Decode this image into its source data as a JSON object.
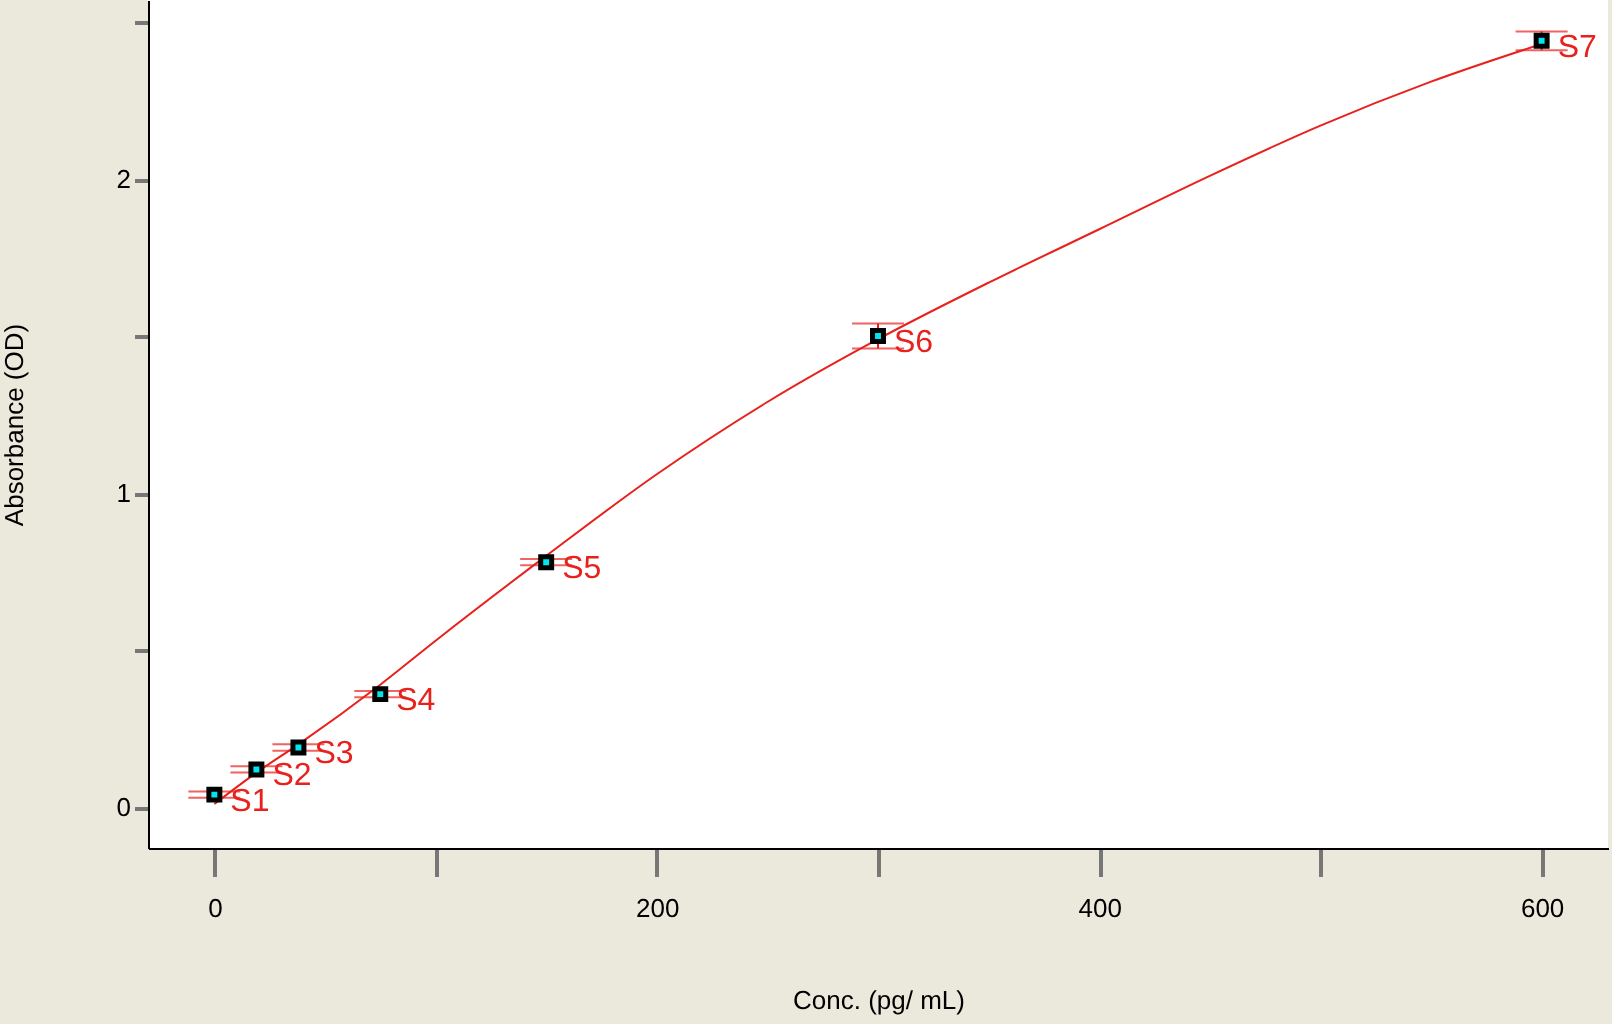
{
  "chart_data": {
    "type": "scatter",
    "xlabel": "Conc. (pg/ mL)",
    "ylabel": "Absorbance (OD)",
    "xlim": [
      -30,
      630
    ],
    "ylim": [
      -0.13,
      2.57
    ],
    "xticks": [
      0,
      {
        "value": 100,
        "label": null
      },
      200,
      {
        "value": 300,
        "label": null
      },
      400,
      {
        "value": 500,
        "label": null
      },
      600
    ],
    "yticks": [
      0,
      {
        "value": 0.5,
        "label": null
      },
      1,
      {
        "value": 1.5,
        "label": null
      },
      2,
      {
        "value": 2.5,
        "label": null
      }
    ],
    "line_style": "solid",
    "series": [
      {
        "type": "line",
        "color": "#e8211c",
        "x": [
          0,
          19,
          38,
          75,
          100,
          150,
          200,
          250,
          300,
          350,
          400,
          450,
          500,
          550,
          600
        ],
        "values": [
          0.01,
          0.11,
          0.2,
          0.39,
          0.53,
          0.8,
          1.06,
          1.29,
          1.49,
          1.67,
          1.84,
          2.01,
          2.17,
          2.31,
          2.43
        ]
      },
      {
        "marker": "square",
        "color": "#00e5ee",
        "x": [
          0,
          19,
          38,
          75,
          150,
          300,
          600
        ],
        "values": [
          0.04,
          0.12,
          0.19,
          0.36,
          0.78,
          1.5,
          2.44
        ],
        "errors": [
          0.01,
          0.01,
          0.01,
          0.01,
          0.01,
          0.04,
          0.03
        ]
      }
    ],
    "annotations": [
      {
        "text": "S1",
        "x": 0,
        "y": 0.04
      },
      {
        "text": "S2",
        "x": 19,
        "y": 0.12
      },
      {
        "text": "S3",
        "x": 38,
        "y": 0.19
      },
      {
        "text": "S4",
        "x": 75,
        "y": 0.36
      },
      {
        "text": "S5",
        "x": 150,
        "y": 0.78
      },
      {
        "text": "S6",
        "x": 300,
        "y": 1.5
      },
      {
        "text": "S7",
        "x": 600,
        "y": 2.44
      }
    ]
  }
}
